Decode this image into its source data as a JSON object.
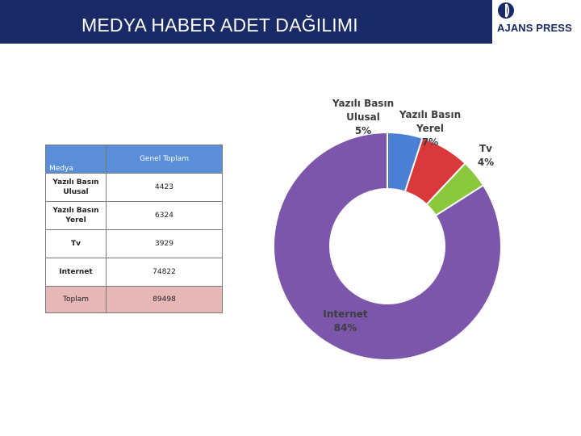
{
  "header": {
    "title": "MEDYA HABER ADET DAĞILIMI",
    "bar_color": "#1a2a66",
    "logo_text": "AJANS PRESS",
    "logo_icon": "globe-icon"
  },
  "table": {
    "headers": [
      "Medya",
      "Genel Toplam"
    ],
    "rows": [
      {
        "medium": "Yazılı Basın Ulusal",
        "total": "4423"
      },
      {
        "medium": "Yazılı Basın Yerel",
        "total": "6324"
      },
      {
        "medium": "Tv",
        "total": "3929"
      },
      {
        "medium": "Internet",
        "total": "74822"
      }
    ],
    "total_row": {
      "medium": "Toplam",
      "total": "89498"
    },
    "header_color": "#5b8ed8",
    "total_row_color": "#e6b8b8"
  },
  "chart_data": {
    "type": "pie",
    "style": "doughnut",
    "title": "",
    "categories": [
      "Yazılı Basın Ulusal",
      "Yazılı Basın Yerel",
      "Tv",
      "Internet"
    ],
    "values": [
      5,
      7,
      4,
      84
    ],
    "labels": [
      "Yazılı Basın\nUlusal\n5%",
      "Yazılı Basın\nYerel\n7%",
      "Tv\n4%",
      "Internet\n84%"
    ],
    "colors": [
      "#4a7fd4",
      "#d9393a",
      "#8cc83e",
      "#7b56aa"
    ],
    "legend": "none"
  }
}
